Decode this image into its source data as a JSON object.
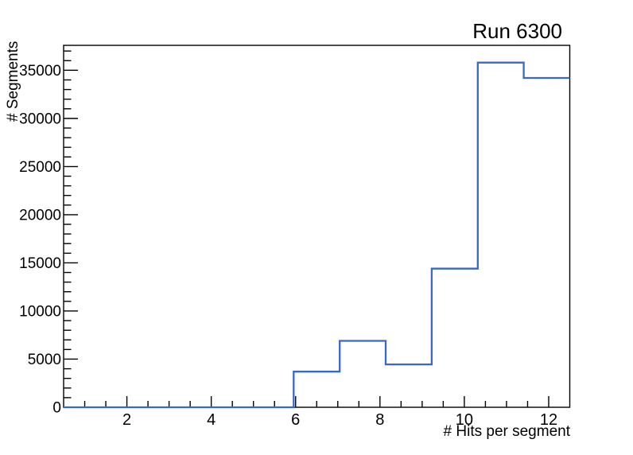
{
  "chart_data": {
    "type": "histogram-step",
    "title": "Run 6300",
    "xlabel": "# Hits per segment",
    "ylabel": "# Segments",
    "bin_edges": [
      0.5,
      1.5909,
      2.6818,
      3.7727,
      4.8636,
      5.9545,
      7.0455,
      8.1364,
      9.2273,
      10.3182,
      11.4091,
      12.5
    ],
    "values": [
      0,
      0,
      0,
      0,
      0,
      3700,
      6900,
      4450,
      14400,
      35800,
      34200
    ],
    "xlim": [
      0.5,
      12.5
    ],
    "ylim": [
      0,
      37590
    ],
    "x_major_ticks": [
      2,
      4,
      6,
      8,
      10,
      12
    ],
    "x_minor_step": 0.5,
    "y_major_ticks": [
      0,
      5000,
      10000,
      15000,
      20000,
      25000,
      30000,
      35000
    ],
    "y_minor_step": 1000,
    "grid": false,
    "legend": false,
    "line_color": "#3a68c6",
    "axis_color": "#000000",
    "background_color": "#ffffff"
  }
}
